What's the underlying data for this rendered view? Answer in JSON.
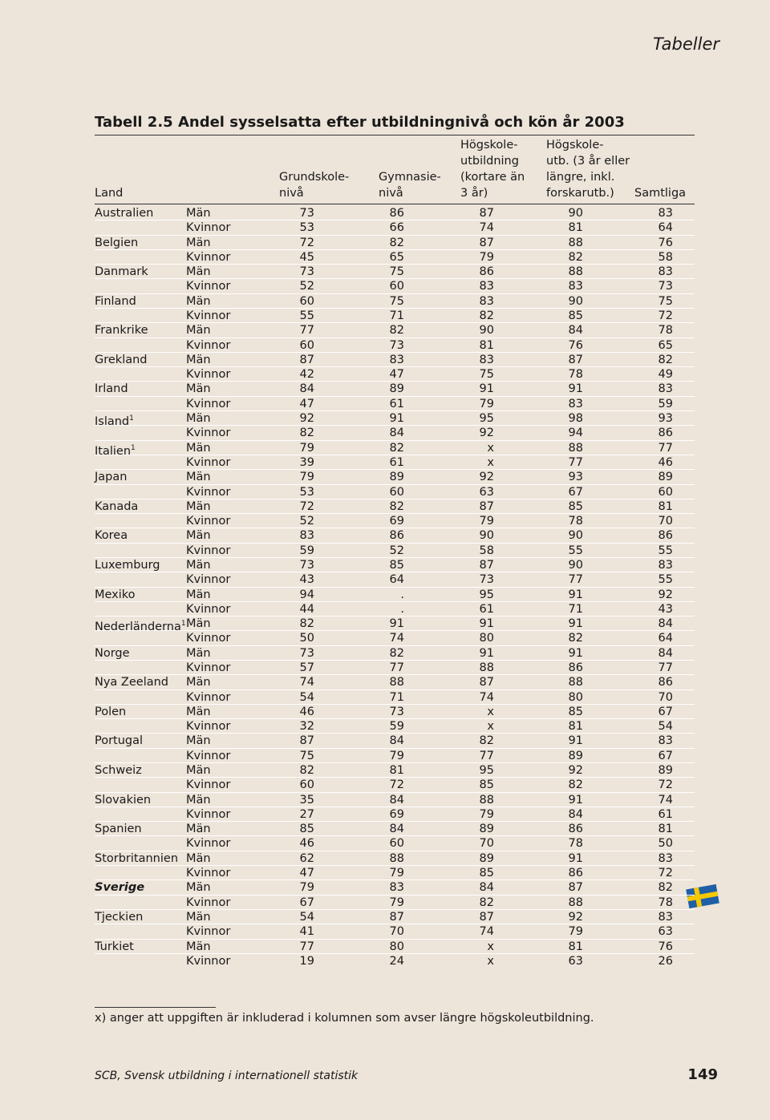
{
  "header": {
    "section": "Tabeller",
    "title": "Tabell 2.5  Andel sysselsatta efter utbildningnivå och kön år 2003"
  },
  "table": {
    "columns": [
      {
        "lines": [
          "Land"
        ]
      },
      {
        "lines": [
          "Grundskole-",
          "nivå"
        ]
      },
      {
        "lines": [
          "Gymnasie-",
          "nivå"
        ]
      },
      {
        "lines": [
          "Högskole-",
          "utbildning",
          "(kortare än",
          "3 år)"
        ]
      },
      {
        "lines": [
          "Högskole-",
          "utb. (3 år eller",
          "längre, inkl.",
          "forskarutb.)"
        ]
      },
      {
        "lines": [
          "Samtliga"
        ]
      }
    ],
    "countries": [
      {
        "name": "Australien",
        "rows": [
          {
            "sex": "Män",
            "values": [
              73,
              86,
              87,
              90,
              83
            ]
          },
          {
            "sex": "Kvinnor",
            "values": [
              53,
              66,
              74,
              81,
              64
            ]
          }
        ]
      },
      {
        "name": "Belgien",
        "rows": [
          {
            "sex": "Män",
            "values": [
              72,
              82,
              87,
              88,
              76
            ]
          },
          {
            "sex": "Kvinnor",
            "values": [
              45,
              65,
              79,
              82,
              58
            ]
          }
        ]
      },
      {
        "name": "Danmark",
        "rows": [
          {
            "sex": "Män",
            "values": [
              73,
              75,
              86,
              88,
              83
            ]
          },
          {
            "sex": "Kvinnor",
            "values": [
              52,
              60,
              83,
              83,
              73
            ]
          }
        ]
      },
      {
        "name": "Finland",
        "rows": [
          {
            "sex": "Män",
            "values": [
              60,
              75,
              83,
              90,
              75
            ]
          },
          {
            "sex": "Kvinnor",
            "values": [
              55,
              71,
              82,
              85,
              72
            ]
          }
        ]
      },
      {
        "name": "Frankrike",
        "rows": [
          {
            "sex": "Män",
            "values": [
              77,
              82,
              90,
              84,
              78
            ]
          },
          {
            "sex": "Kvinnor",
            "values": [
              60,
              73,
              81,
              76,
              65
            ]
          }
        ]
      },
      {
        "name": "Grekland",
        "rows": [
          {
            "sex": "Män",
            "values": [
              87,
              83,
              83,
              87,
              82
            ]
          },
          {
            "sex": "Kvinnor",
            "values": [
              42,
              47,
              75,
              78,
              49
            ]
          }
        ]
      },
      {
        "name": "Irland",
        "rows": [
          {
            "sex": "Män",
            "values": [
              84,
              89,
              91,
              91,
              83
            ]
          },
          {
            "sex": "Kvinnor",
            "values": [
              47,
              61,
              79,
              83,
              59
            ]
          }
        ]
      },
      {
        "name": "Island",
        "sup": "1",
        "rows": [
          {
            "sex": "Män",
            "values": [
              92,
              91,
              95,
              98,
              93
            ]
          },
          {
            "sex": "Kvinnor",
            "values": [
              82,
              84,
              92,
              94,
              86
            ]
          }
        ]
      },
      {
        "name": "Italien",
        "sup": "1",
        "rows": [
          {
            "sex": "Män",
            "values": [
              79,
              82,
              "x",
              88,
              77
            ]
          },
          {
            "sex": "Kvinnor",
            "values": [
              39,
              61,
              "x",
              77,
              46
            ]
          }
        ]
      },
      {
        "name": "Japan",
        "rows": [
          {
            "sex": "Män",
            "values": [
              79,
              89,
              92,
              93,
              89
            ]
          },
          {
            "sex": "Kvinnor",
            "values": [
              53,
              60,
              63,
              67,
              60
            ]
          }
        ]
      },
      {
        "name": "Kanada",
        "rows": [
          {
            "sex": "Män",
            "values": [
              72,
              82,
              87,
              85,
              81
            ]
          },
          {
            "sex": "Kvinnor",
            "values": [
              52,
              69,
              79,
              78,
              70
            ]
          }
        ]
      },
      {
        "name": "Korea",
        "rows": [
          {
            "sex": "Män",
            "values": [
              83,
              86,
              90,
              90,
              86
            ]
          },
          {
            "sex": "Kvinnor",
            "values": [
              59,
              52,
              58,
              55,
              55
            ]
          }
        ]
      },
      {
        "name": "Luxemburg",
        "rows": [
          {
            "sex": "Män",
            "values": [
              73,
              85,
              87,
              90,
              83
            ]
          },
          {
            "sex": "Kvinnor",
            "values": [
              43,
              64,
              73,
              77,
              55
            ]
          }
        ]
      },
      {
        "name": "Mexiko",
        "rows": [
          {
            "sex": "Män",
            "values": [
              94,
              ".",
              95,
              91,
              92
            ]
          },
          {
            "sex": "Kvinnor",
            "values": [
              44,
              ".",
              61,
              71,
              43
            ]
          }
        ]
      },
      {
        "name": "Nederländerna",
        "sup": "1",
        "rows": [
          {
            "sex": "Män",
            "values": [
              82,
              91,
              91,
              91,
              84
            ]
          },
          {
            "sex": "Kvinnor",
            "values": [
              50,
              74,
              80,
              82,
              64
            ]
          }
        ]
      },
      {
        "name": "Norge",
        "rows": [
          {
            "sex": "Män",
            "values": [
              73,
              82,
              91,
              91,
              84
            ]
          },
          {
            "sex": "Kvinnor",
            "values": [
              57,
              77,
              88,
              86,
              77
            ]
          }
        ]
      },
      {
        "name": "Nya Zeeland",
        "rows": [
          {
            "sex": "Män",
            "values": [
              74,
              88,
              87,
              88,
              86
            ]
          },
          {
            "sex": "Kvinnor",
            "values": [
              54,
              71,
              74,
              80,
              70
            ]
          }
        ]
      },
      {
        "name": "Polen",
        "rows": [
          {
            "sex": "Män",
            "values": [
              46,
              73,
              "x",
              85,
              67
            ]
          },
          {
            "sex": "Kvinnor",
            "values": [
              32,
              59,
              "x",
              81,
              54
            ]
          }
        ]
      },
      {
        "name": "Portugal",
        "rows": [
          {
            "sex": "Män",
            "values": [
              87,
              84,
              82,
              91,
              83
            ]
          },
          {
            "sex": "Kvinnor",
            "values": [
              75,
              79,
              77,
              89,
              67
            ]
          }
        ]
      },
      {
        "name": "Schweiz",
        "rows": [
          {
            "sex": "Män",
            "values": [
              82,
              81,
              95,
              92,
              89
            ]
          },
          {
            "sex": "Kvinnor",
            "values": [
              60,
              72,
              85,
              82,
              72
            ]
          }
        ]
      },
      {
        "name": "Slovakien",
        "rows": [
          {
            "sex": "Män",
            "values": [
              35,
              84,
              88,
              91,
              74
            ]
          },
          {
            "sex": "Kvinnor",
            "values": [
              27,
              69,
              79,
              84,
              61
            ]
          }
        ]
      },
      {
        "name": "Spanien",
        "rows": [
          {
            "sex": "Män",
            "values": [
              85,
              84,
              89,
              86,
              81
            ]
          },
          {
            "sex": "Kvinnor",
            "values": [
              46,
              60,
              70,
              78,
              50
            ]
          }
        ]
      },
      {
        "name": "Storbritannien",
        "rows": [
          {
            "sex": "Män",
            "values": [
              62,
              88,
              89,
              91,
              83
            ]
          },
          {
            "sex": "Kvinnor",
            "values": [
              47,
              79,
              85,
              86,
              72
            ]
          }
        ]
      },
      {
        "name": "Sverige",
        "highlight": true,
        "rows": [
          {
            "sex": "Män",
            "values": [
              79,
              83,
              84,
              87,
              82
            ]
          },
          {
            "sex": "Kvinnor",
            "values": [
              67,
              79,
              82,
              88,
              78
            ]
          }
        ]
      },
      {
        "name": "Tjeckien",
        "rows": [
          {
            "sex": "Män",
            "values": [
              54,
              87,
              87,
              92,
              83
            ]
          },
          {
            "sex": "Kvinnor",
            "values": [
              41,
              70,
              74,
              79,
              63
            ]
          }
        ]
      },
      {
        "name": "Turkiet",
        "rows": [
          {
            "sex": "Män",
            "values": [
              77,
              80,
              "x",
              81,
              76
            ]
          },
          {
            "sex": "Kvinnor",
            "values": [
              19,
              24,
              "x",
              63,
              26
            ]
          }
        ]
      }
    ]
  },
  "footnote": "x) anger att uppgiften är inkluderad i kolumnen som avser längre högskoleutbildning.",
  "footer": {
    "source": "SCB, Svensk utbildning i internationell statistik",
    "page": "149"
  }
}
